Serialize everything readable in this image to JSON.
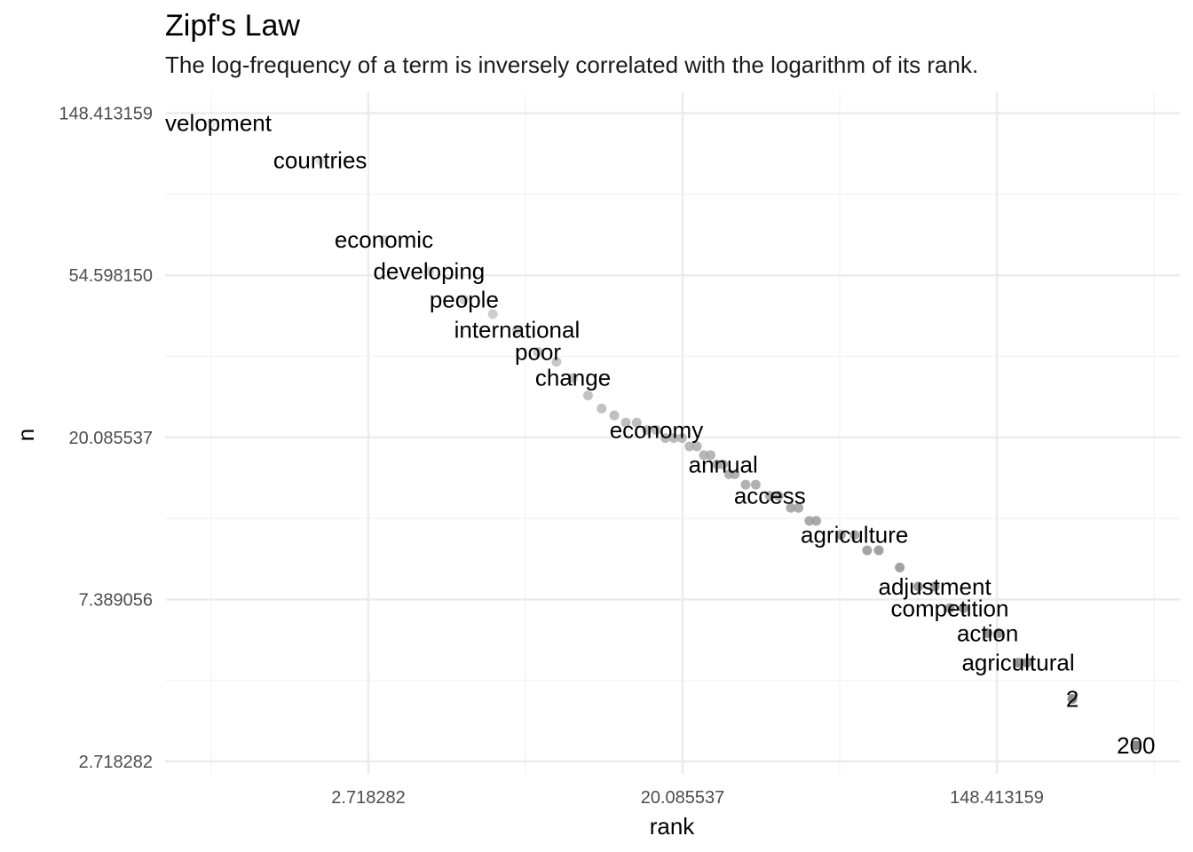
{
  "chart_data": {
    "type": "scatter",
    "title": "Zipf's Law",
    "subtitle": "The log-frequency of a term is inversely correlated with the logarithm of its rank.",
    "xlabel": "rank",
    "ylabel": "n",
    "x_scale": "log",
    "y_scale": "log",
    "xlim": [
      1,
      400
    ],
    "ylim": [
      2.6,
      160
    ],
    "x_ticks": [
      {
        "value": 2.718282,
        "label": "2.718282"
      },
      {
        "value": 20.085537,
        "label": "20.085537"
      },
      {
        "value": 148.413159,
        "label": "148.413159"
      }
    ],
    "y_ticks": [
      {
        "value": 2.718282,
        "label": "2.718282"
      },
      {
        "value": 7.389056,
        "label": "7.389056"
      },
      {
        "value": 20.085537,
        "label": "20.085537"
      },
      {
        "value": 54.59815,
        "label": "54.598150"
      },
      {
        "value": 148.413159,
        "label": "148.413159"
      }
    ],
    "grid": true,
    "point_color_gradient": [
      "#ebebeb",
      "#6e6e6e"
    ],
    "points": [
      {
        "x": 1,
        "y": 140
      },
      {
        "x": 2,
        "y": 111
      },
      {
        "x": 3,
        "y": 68
      },
      {
        "x": 4,
        "y": 56
      },
      {
        "x": 5,
        "y": 47
      },
      {
        "x": 6,
        "y": 43
      },
      {
        "x": 7,
        "y": 39
      },
      {
        "x": 8,
        "y": 34
      },
      {
        "x": 9,
        "y": 32
      },
      {
        "x": 10,
        "y": 29
      },
      {
        "x": 11,
        "y": 26
      },
      {
        "x": 12,
        "y": 24
      },
      {
        "x": 13,
        "y": 23
      },
      {
        "x": 14,
        "y": 22
      },
      {
        "x": 15,
        "y": 22
      },
      {
        "x": 16,
        "y": 21
      },
      {
        "x": 17,
        "y": 21
      },
      {
        "x": 18,
        "y": 20
      },
      {
        "x": 19,
        "y": 20
      },
      {
        "x": 20,
        "y": 20
      },
      {
        "x": 21,
        "y": 19
      },
      {
        "x": 22,
        "y": 19
      },
      {
        "x": 23,
        "y": 18
      },
      {
        "x": 24,
        "y": 18
      },
      {
        "x": 25,
        "y": 17
      },
      {
        "x": 26,
        "y": 17
      },
      {
        "x": 27,
        "y": 16
      },
      {
        "x": 28,
        "y": 16
      },
      {
        "x": 30,
        "y": 15
      },
      {
        "x": 32,
        "y": 15
      },
      {
        "x": 35,
        "y": 14
      },
      {
        "x": 37,
        "y": 14
      },
      {
        "x": 40,
        "y": 13
      },
      {
        "x": 42,
        "y": 13
      },
      {
        "x": 45,
        "y": 12
      },
      {
        "x": 47,
        "y": 12
      },
      {
        "x": 55,
        "y": 11
      },
      {
        "x": 60,
        "y": 11
      },
      {
        "x": 65,
        "y": 10
      },
      {
        "x": 70,
        "y": 10
      },
      {
        "x": 80,
        "y": 9
      },
      {
        "x": 90,
        "y": 8
      },
      {
        "x": 100,
        "y": 8
      },
      {
        "x": 110,
        "y": 7
      },
      {
        "x": 120,
        "y": 7
      },
      {
        "x": 140,
        "y": 6
      },
      {
        "x": 150,
        "y": 6
      },
      {
        "x": 170,
        "y": 5
      },
      {
        "x": 180,
        "y": 5
      },
      {
        "x": 240,
        "y": 4
      },
      {
        "x": 360,
        "y": 3
      }
    ],
    "labels": [
      {
        "text": "velopment",
        "x": 1,
        "y": 140
      },
      {
        "text": "countries",
        "x": 2,
        "y": 111
      },
      {
        "text": "economic",
        "x": 3,
        "y": 68
      },
      {
        "text": "developing",
        "x": 4,
        "y": 56
      },
      {
        "text": "people",
        "x": 5,
        "y": 47
      },
      {
        "text": "international",
        "x": 7,
        "y": 39
      },
      {
        "text": "poor",
        "x": 8,
        "y": 34
      },
      {
        "text": "change",
        "x": 10,
        "y": 29
      },
      {
        "text": "economy",
        "x": 17,
        "y": 21
      },
      {
        "text": "annual",
        "x": 26,
        "y": 17
      },
      {
        "text": "access",
        "x": 35,
        "y": 14
      },
      {
        "text": "agriculture",
        "x": 60,
        "y": 11
      },
      {
        "text": "adjustment",
        "x": 100,
        "y": 8
      },
      {
        "text": "competition",
        "x": 110,
        "y": 7
      },
      {
        "text": "action",
        "x": 140,
        "y": 6
      },
      {
        "text": "agricultural",
        "x": 170,
        "y": 5
      },
      {
        "text": "2",
        "x": 240,
        "y": 4
      },
      {
        "text": "200",
        "x": 360,
        "y": 3
      }
    ]
  }
}
